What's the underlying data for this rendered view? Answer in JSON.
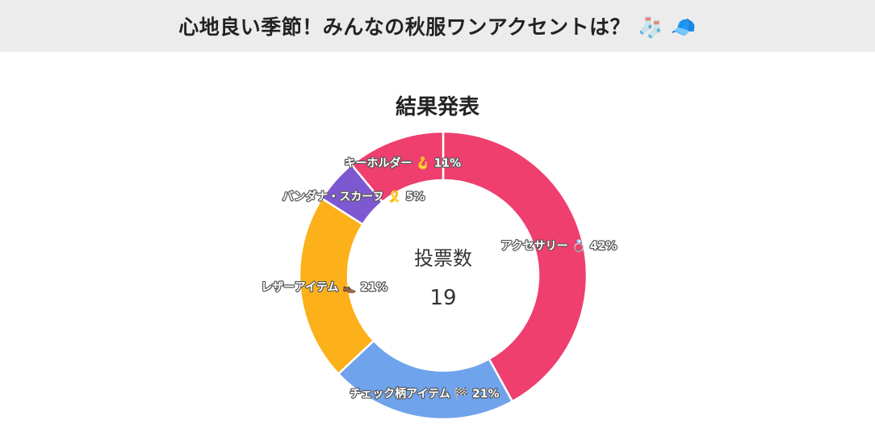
{
  "header": {
    "title": "心地良い季節！みんなの秋服ワンアクセントは？ 🧦 🧢"
  },
  "chart_data": {
    "type": "pie",
    "title": "結果発表",
    "center_label": "投票数",
    "center_value": "19",
    "slices": [
      {
        "label": "アクセサリー 💍",
        "percent_label": "42%",
        "value": 42,
        "color": "#ee3f6e"
      },
      {
        "label": "チェック柄アイテム 🏁",
        "percent_label": "21%",
        "value": 21,
        "color": "#6fa3ec"
      },
      {
        "label": "レザーアイテム 👞",
        "percent_label": "21%",
        "value": 21,
        "color": "#fcb01a"
      },
      {
        "label": "バンダナ・スカーフ 🎗️",
        "percent_label": "5%",
        "value": 5,
        "color": "#7e58d1"
      },
      {
        "label": "キーホルダー 🪝",
        "percent_label": "11%",
        "value": 11,
        "color": "#ee3f6e"
      }
    ]
  }
}
